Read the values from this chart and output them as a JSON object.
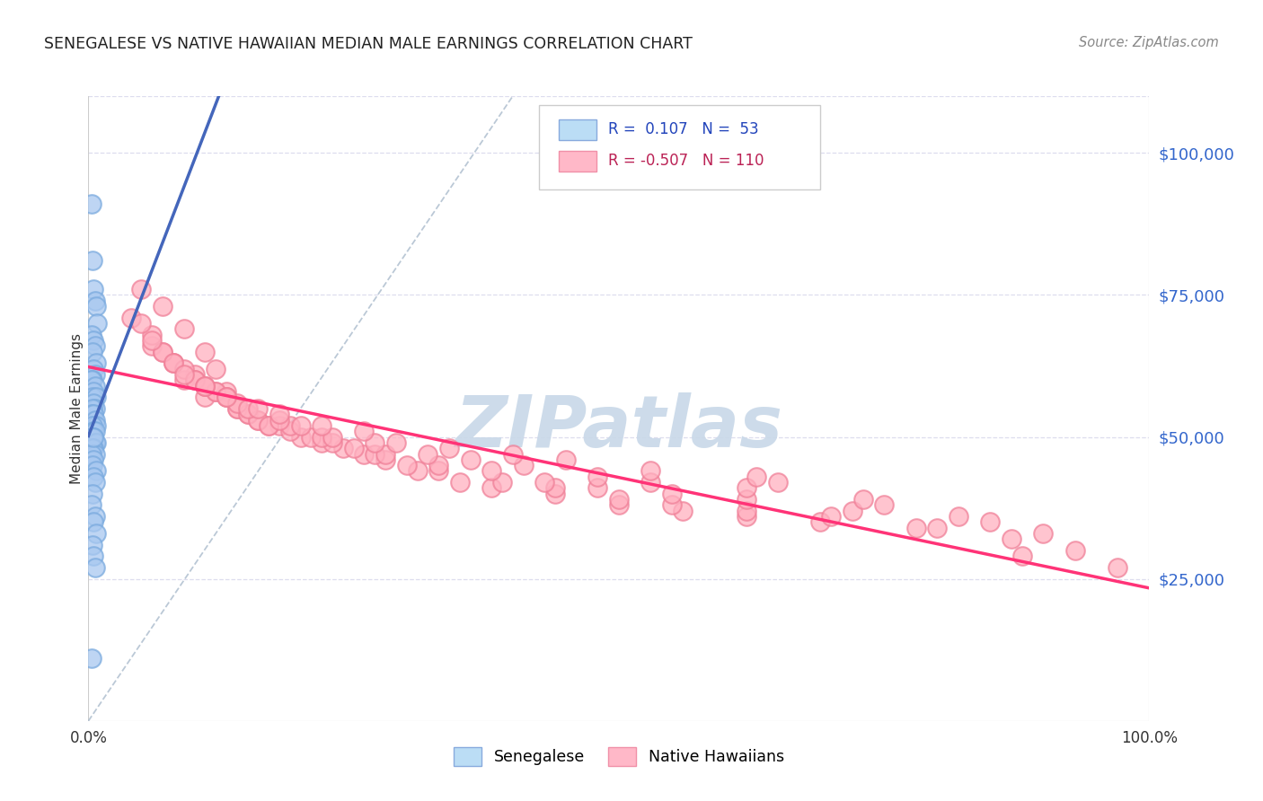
{
  "title": "SENEGALESE VS NATIVE HAWAIIAN MEDIAN MALE EARNINGS CORRELATION CHART",
  "source": "Source: ZipAtlas.com",
  "ylabel": "Median Male Earnings",
  "ytick_labels": [
    "$25,000",
    "$50,000",
    "$75,000",
    "$100,000"
  ],
  "ytick_values": [
    25000,
    50000,
    75000,
    100000
  ],
  "y_min": 0,
  "y_max": 110000,
  "x_min": 0.0,
  "x_max": 1.0,
  "legend_r_blue": "0.107",
  "legend_n_blue": "53",
  "legend_r_pink": "-0.507",
  "legend_n_pink": "110",
  "blue_scatter_color": "#A8C8F0",
  "blue_edge_color": "#7AAADE",
  "pink_scatter_color": "#FFB0C0",
  "pink_edge_color": "#F08098",
  "blue_line_color": "#4466BB",
  "pink_line_color": "#FF3377",
  "diagonal_color": "#AABBCC",
  "watermark_color": "#C8D8E8",
  "background_color": "#FFFFFF",
  "grid_color": "#DDDDEE",
  "blue_x": [
    0.003,
    0.004,
    0.005,
    0.006,
    0.007,
    0.008,
    0.003,
    0.005,
    0.006,
    0.004,
    0.007,
    0.005,
    0.006,
    0.004,
    0.003,
    0.006,
    0.005,
    0.004,
    0.007,
    0.005,
    0.006,
    0.004,
    0.003,
    0.005,
    0.006,
    0.007,
    0.004,
    0.005,
    0.006,
    0.003,
    0.005,
    0.004,
    0.006,
    0.007,
    0.005,
    0.004,
    0.006,
    0.003,
    0.005,
    0.004,
    0.007,
    0.005,
    0.006,
    0.004,
    0.003,
    0.006,
    0.005,
    0.007,
    0.004,
    0.005,
    0.006,
    0.003,
    0.005
  ],
  "blue_y": [
    91000,
    81000,
    76000,
    74000,
    73000,
    70000,
    68000,
    67000,
    66000,
    65000,
    63000,
    62000,
    61000,
    60000,
    60000,
    59000,
    58000,
    57000,
    57000,
    56000,
    55000,
    55000,
    54000,
    54000,
    53000,
    52000,
    52000,
    51000,
    51000,
    50000,
    50000,
    50000,
    49000,
    49000,
    48000,
    48000,
    47000,
    47000,
    46000,
    45000,
    44000,
    43000,
    42000,
    40000,
    38000,
    36000,
    35000,
    33000,
    31000,
    29000,
    27000,
    11000,
    50000
  ],
  "pink_x": [
    0.05,
    0.07,
    0.04,
    0.09,
    0.06,
    0.11,
    0.08,
    0.12,
    0.1,
    0.13,
    0.06,
    0.09,
    0.07,
    0.11,
    0.05,
    0.14,
    0.08,
    0.1,
    0.12,
    0.15,
    0.07,
    0.09,
    0.11,
    0.13,
    0.16,
    0.06,
    0.1,
    0.14,
    0.12,
    0.18,
    0.08,
    0.11,
    0.15,
    0.17,
    0.2,
    0.13,
    0.09,
    0.16,
    0.22,
    0.19,
    0.14,
    0.11,
    0.24,
    0.17,
    0.21,
    0.26,
    0.15,
    0.19,
    0.23,
    0.28,
    0.13,
    0.18,
    0.22,
    0.27,
    0.31,
    0.16,
    0.2,
    0.25,
    0.3,
    0.35,
    0.18,
    0.23,
    0.28,
    0.33,
    0.38,
    0.22,
    0.27,
    0.33,
    0.39,
    0.44,
    0.26,
    0.32,
    0.38,
    0.44,
    0.5,
    0.29,
    0.36,
    0.43,
    0.5,
    0.56,
    0.34,
    0.41,
    0.48,
    0.55,
    0.62,
    0.4,
    0.48,
    0.55,
    0.62,
    0.69,
    0.45,
    0.53,
    0.62,
    0.7,
    0.78,
    0.53,
    0.62,
    0.72,
    0.8,
    0.87,
    0.63,
    0.73,
    0.82,
    0.9,
    0.88,
    0.65,
    0.75,
    0.85,
    0.93,
    0.97
  ],
  "pink_y": [
    76000,
    73000,
    71000,
    69000,
    66000,
    65000,
    63000,
    62000,
    61000,
    58000,
    68000,
    60000,
    65000,
    57000,
    70000,
    55000,
    63000,
    60000,
    58000,
    54000,
    65000,
    62000,
    59000,
    57000,
    53000,
    67000,
    60000,
    55000,
    58000,
    52000,
    63000,
    59000,
    54000,
    52000,
    50000,
    57000,
    61000,
    53000,
    49000,
    51000,
    56000,
    59000,
    48000,
    52000,
    50000,
    47000,
    55000,
    52000,
    49000,
    46000,
    57000,
    53000,
    50000,
    47000,
    44000,
    55000,
    52000,
    48000,
    45000,
    42000,
    54000,
    50000,
    47000,
    44000,
    41000,
    52000,
    49000,
    45000,
    42000,
    40000,
    51000,
    47000,
    44000,
    41000,
    38000,
    49000,
    46000,
    42000,
    39000,
    37000,
    48000,
    45000,
    41000,
    38000,
    36000,
    47000,
    43000,
    40000,
    37000,
    35000,
    46000,
    42000,
    39000,
    36000,
    34000,
    44000,
    41000,
    37000,
    34000,
    32000,
    43000,
    39000,
    36000,
    33000,
    29000,
    42000,
    38000,
    35000,
    30000,
    27000
  ]
}
